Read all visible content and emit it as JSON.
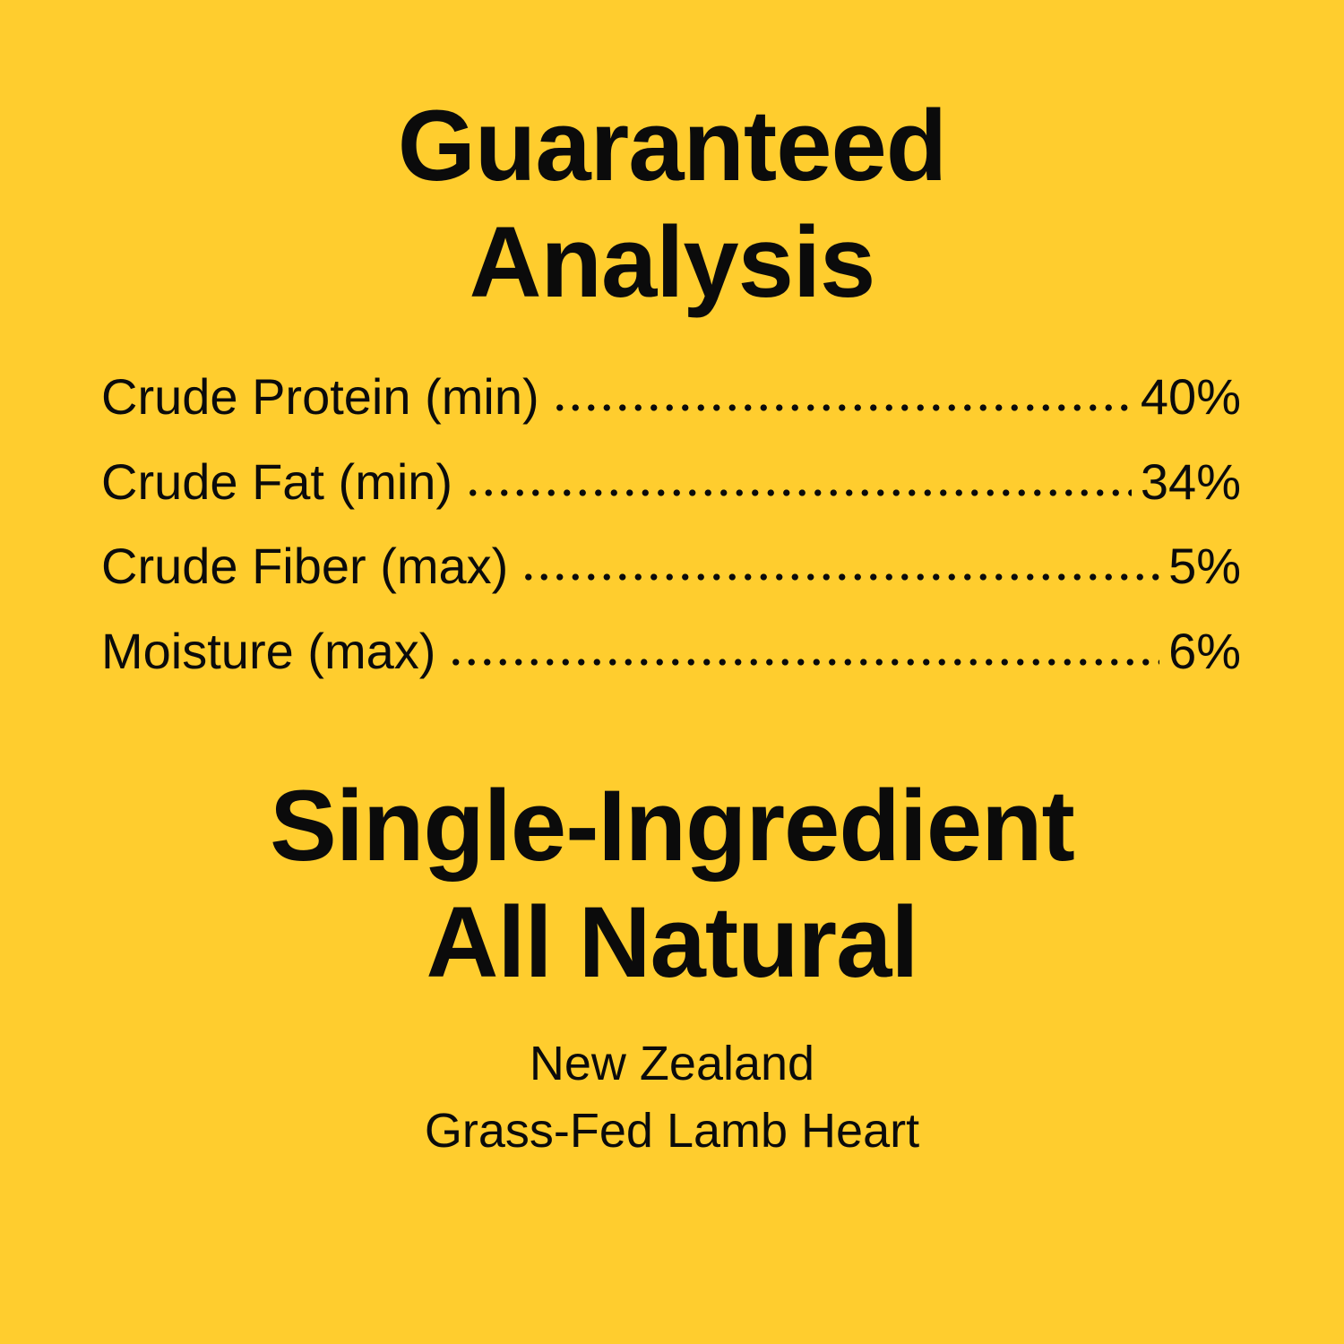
{
  "heading_1": {
    "line1": "Guaranteed",
    "line2": "Analysis"
  },
  "analysis": [
    {
      "label": "Crude Protein (min)",
      "value": "40%"
    },
    {
      "label": "Crude Fat (min)",
      "value": "34%"
    },
    {
      "label": "Crude Fiber (max)",
      "value": "5%"
    },
    {
      "label": "Moisture (max)",
      "value": "6%"
    }
  ],
  "heading_2": {
    "line1": "Single-Ingredient",
    "line2": "All Natural"
  },
  "ingredient": {
    "line1": "New Zealand",
    "line2": "Grass-Fed Lamb Heart"
  },
  "colors": {
    "background": "#FFCD2E",
    "text": "#0b0b0b"
  }
}
